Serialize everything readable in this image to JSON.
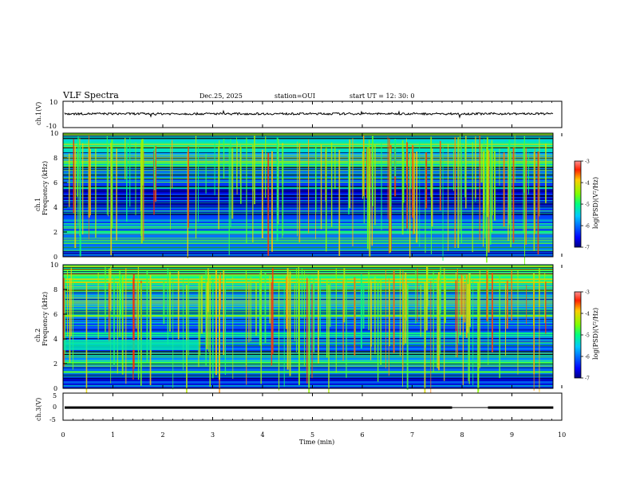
{
  "header": {
    "title": "VLF Spectra",
    "date": "Dec.25, 2025",
    "station": "station=OUI",
    "start": "start  UT  =   12: 30: 0"
  },
  "colorbar": {
    "label": "log(PSD)(V²/Hz)",
    "ticks": [
      "-3",
      "-4",
      "-5",
      "-6",
      "-7"
    ],
    "range": [
      -7,
      -3
    ]
  },
  "chart_data": [
    {
      "type": "line",
      "name": "ch1-waveform",
      "ylabel": "ch.1(V)",
      "ylim": [
        -10,
        10
      ],
      "y_ticks": [
        "10",
        "-10"
      ],
      "x_range": [
        0,
        10
      ],
      "description_level": 0.5
    },
    {
      "type": "heatmap",
      "name": "ch1-spectrogram",
      "ylabel": "ch.1 Frequency (kHz)",
      "ylim": [
        0,
        10
      ],
      "y_ticks": [
        "0",
        "2",
        "4",
        "6",
        "8",
        "10"
      ],
      "x_range": [
        0,
        10
      ],
      "colorscale": "jet",
      "zlim": [
        -7,
        -3
      ]
    },
    {
      "type": "heatmap",
      "name": "ch2-spectrogram",
      "ylabel": "ch.2 Frequency (kHz)",
      "ylim": [
        0,
        10
      ],
      "y_ticks": [
        "0",
        "2",
        "4",
        "6",
        "8",
        "10"
      ],
      "x_range": [
        0,
        10
      ],
      "colorscale": "jet",
      "zlim": [
        -7,
        -3
      ]
    },
    {
      "type": "line",
      "name": "ch3-waveform",
      "ylabel": "ch.3(V)",
      "ylim": [
        -5,
        5
      ],
      "y_ticks": [
        "5",
        "0",
        "-5"
      ],
      "x_range": [
        0,
        10
      ],
      "level": -0.2
    }
  ],
  "xaxis": {
    "label": "Time  (min)",
    "ticks": [
      "0",
      "1",
      "2",
      "3",
      "4",
      "5",
      "6",
      "7",
      "8",
      "9",
      "10"
    ],
    "range": [
      0,
      10
    ]
  }
}
